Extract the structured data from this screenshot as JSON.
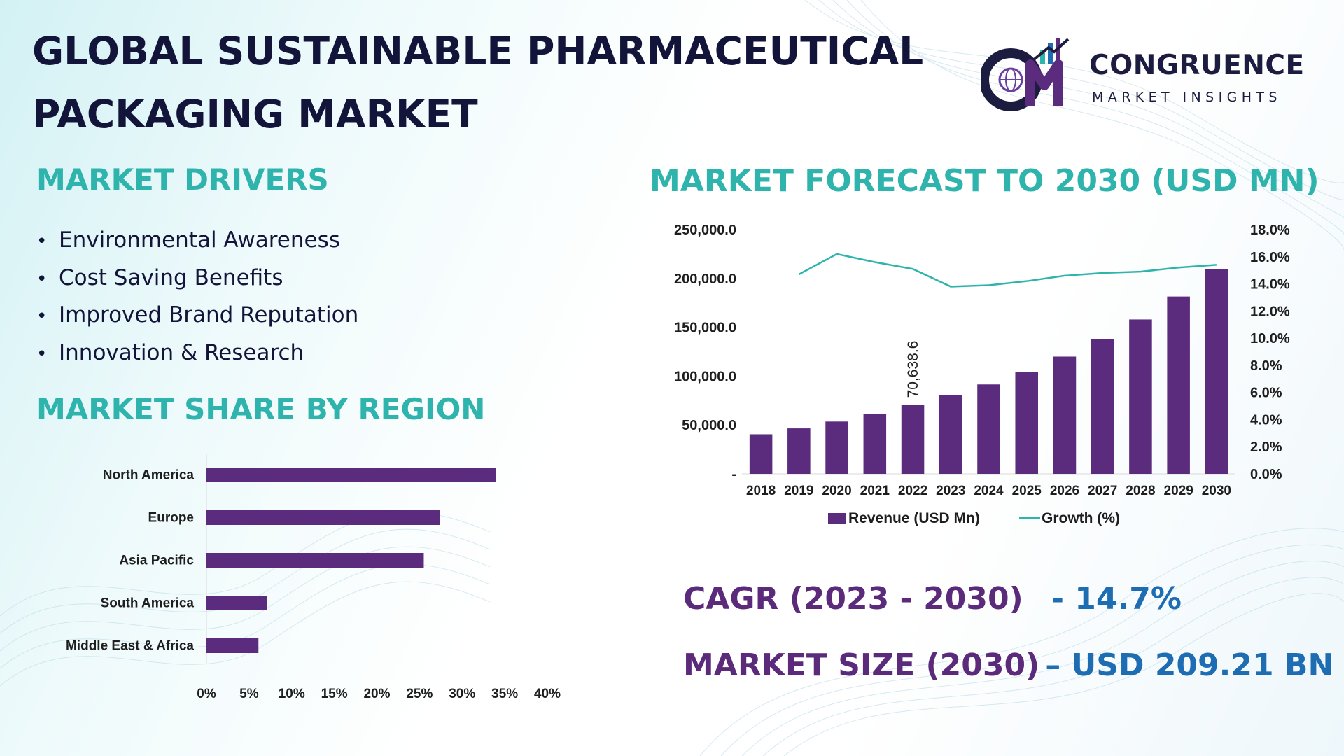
{
  "title": {
    "line1": "GLOBAL SUSTAINABLE PHARMACEUTICAL",
    "line2": "PACKAGING MARKET"
  },
  "logo": {
    "name": "CONGRUENCE",
    "tagline": "MARKET INSIGHTS",
    "monogram": "CM"
  },
  "drivers": {
    "heading": "MARKET DRIVERS",
    "items": [
      "Environmental Awareness",
      "Cost Saving Benefits",
      "Improved Brand Reputation",
      "Innovation & Research"
    ]
  },
  "forecast": {
    "heading": "MARKET FORECAST TO 2030 (USD MN)"
  },
  "region": {
    "heading": "MARKET SHARE BY REGION"
  },
  "stats": {
    "cagr_label": "CAGR (2023 - 2030)",
    "cagr_value": "- 14.7%",
    "size_label": "MARKET SIZE (2030)",
    "size_value": "– USD 209.21 BN"
  },
  "colors": {
    "bar": "#5b2c7d",
    "growth_line": "#2fb4ad",
    "heading": "#2fb4ad",
    "title": "#13143a",
    "stat_label": "#5b2a7b",
    "stat_value": "#1e6db3"
  },
  "chart_data": [
    {
      "type": "bar",
      "orientation": "horizontal",
      "title": "MARKET SHARE BY REGION",
      "categories": [
        "North America",
        "Europe",
        "Asia Pacific",
        "South America",
        "Middle East & Africa"
      ],
      "values": [
        34,
        27.4,
        25.5,
        7.1,
        6.1
      ],
      "xlim": [
        0,
        40
      ],
      "xticks": [
        "0%",
        "5%",
        "10%",
        "15%",
        "20%",
        "25%",
        "30%",
        "35%",
        "40%"
      ]
    },
    {
      "type": "bar",
      "title": "MARKET FORECAST TO 2030 (USD MN)",
      "categories": [
        "2018",
        "2019",
        "2020",
        "2021",
        "2022",
        "2023",
        "2024",
        "2025",
        "2026",
        "2027",
        "2028",
        "2029",
        "2030"
      ],
      "series": [
        {
          "name": "Revenue (USD Mn)",
          "type": "bar",
          "axis": "left",
          "values": [
            40500,
            46500,
            53500,
            61500,
            70638.6,
            80500,
            91500,
            104500,
            120000,
            138000,
            158000,
            181500,
            209210
          ]
        },
        {
          "name": "Growth (%)",
          "type": "line",
          "axis": "right",
          "values": [
            null,
            14.7,
            16.2,
            15.6,
            15.1,
            13.8,
            13.9,
            14.2,
            14.6,
            14.8,
            14.9,
            15.2,
            15.4
          ]
        }
      ],
      "data_labels": [
        {
          "index": 4,
          "text": "70,638.6"
        }
      ],
      "ylim_left": [
        0,
        250000
      ],
      "yticks_left": [
        "-",
        "50,000.0",
        "100,000.0",
        "150,000.0",
        "200,000.0",
        "250,000.0"
      ],
      "ylim_right": [
        0,
        18
      ],
      "yticks_right": [
        "0.0%",
        "2.0%",
        "4.0%",
        "6.0%",
        "8.0%",
        "10.0%",
        "12.0%",
        "14.0%",
        "16.0%",
        "18.0%"
      ],
      "legend": "bottom"
    }
  ]
}
